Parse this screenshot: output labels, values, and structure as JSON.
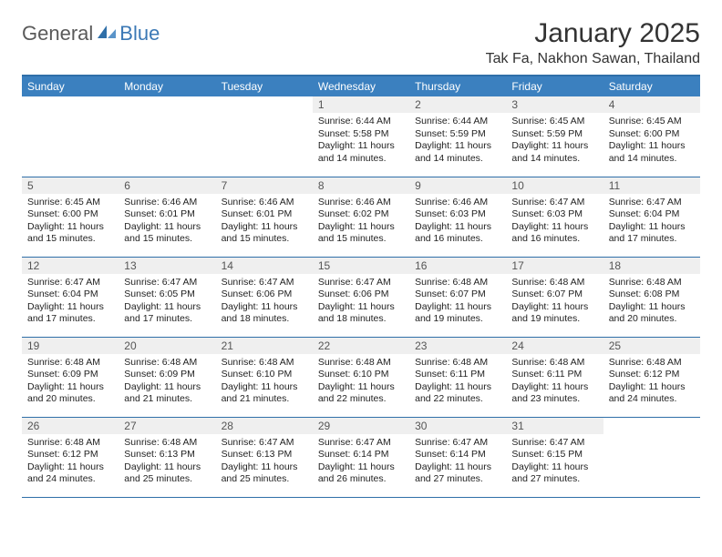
{
  "logo": {
    "text1": "General",
    "text2": "Blue"
  },
  "title": "January 2025",
  "location": "Tak Fa, Nakhon Sawan, Thailand",
  "colors": {
    "header_bg": "#3b80bf",
    "header_text": "#ffffff",
    "border": "#2f6fa8",
    "daynum_bg": "#efefef",
    "daynum_text": "#555555",
    "body_text": "#222222",
    "logo_gray": "#5a5a5a",
    "logo_blue": "#3b78b5",
    "page_bg": "#ffffff"
  },
  "typography": {
    "title_fontsize": 30,
    "location_fontsize": 16,
    "header_fontsize": 12,
    "daynum_fontsize": 12,
    "content_fontsize": 10.5
  },
  "dayHeaders": [
    "Sunday",
    "Monday",
    "Tuesday",
    "Wednesday",
    "Thursday",
    "Friday",
    "Saturday"
  ],
  "weeks": [
    [
      null,
      null,
      null,
      {
        "n": "1",
        "sunrise": "6:44 AM",
        "sunset": "5:58 PM",
        "daylight": "11 hours and 14 minutes."
      },
      {
        "n": "2",
        "sunrise": "6:44 AM",
        "sunset": "5:59 PM",
        "daylight": "11 hours and 14 minutes."
      },
      {
        "n": "3",
        "sunrise": "6:45 AM",
        "sunset": "5:59 PM",
        "daylight": "11 hours and 14 minutes."
      },
      {
        "n": "4",
        "sunrise": "6:45 AM",
        "sunset": "6:00 PM",
        "daylight": "11 hours and 14 minutes."
      }
    ],
    [
      {
        "n": "5",
        "sunrise": "6:45 AM",
        "sunset": "6:00 PM",
        "daylight": "11 hours and 15 minutes."
      },
      {
        "n": "6",
        "sunrise": "6:46 AM",
        "sunset": "6:01 PM",
        "daylight": "11 hours and 15 minutes."
      },
      {
        "n": "7",
        "sunrise": "6:46 AM",
        "sunset": "6:01 PM",
        "daylight": "11 hours and 15 minutes."
      },
      {
        "n": "8",
        "sunrise": "6:46 AM",
        "sunset": "6:02 PM",
        "daylight": "11 hours and 15 minutes."
      },
      {
        "n": "9",
        "sunrise": "6:46 AM",
        "sunset": "6:03 PM",
        "daylight": "11 hours and 16 minutes."
      },
      {
        "n": "10",
        "sunrise": "6:47 AM",
        "sunset": "6:03 PM",
        "daylight": "11 hours and 16 minutes."
      },
      {
        "n": "11",
        "sunrise": "6:47 AM",
        "sunset": "6:04 PM",
        "daylight": "11 hours and 17 minutes."
      }
    ],
    [
      {
        "n": "12",
        "sunrise": "6:47 AM",
        "sunset": "6:04 PM",
        "daylight": "11 hours and 17 minutes."
      },
      {
        "n": "13",
        "sunrise": "6:47 AM",
        "sunset": "6:05 PM",
        "daylight": "11 hours and 17 minutes."
      },
      {
        "n": "14",
        "sunrise": "6:47 AM",
        "sunset": "6:06 PM",
        "daylight": "11 hours and 18 minutes."
      },
      {
        "n": "15",
        "sunrise": "6:47 AM",
        "sunset": "6:06 PM",
        "daylight": "11 hours and 18 minutes."
      },
      {
        "n": "16",
        "sunrise": "6:48 AM",
        "sunset": "6:07 PM",
        "daylight": "11 hours and 19 minutes."
      },
      {
        "n": "17",
        "sunrise": "6:48 AM",
        "sunset": "6:07 PM",
        "daylight": "11 hours and 19 minutes."
      },
      {
        "n": "18",
        "sunrise": "6:48 AM",
        "sunset": "6:08 PM",
        "daylight": "11 hours and 20 minutes."
      }
    ],
    [
      {
        "n": "19",
        "sunrise": "6:48 AM",
        "sunset": "6:09 PM",
        "daylight": "11 hours and 20 minutes."
      },
      {
        "n": "20",
        "sunrise": "6:48 AM",
        "sunset": "6:09 PM",
        "daylight": "11 hours and 21 minutes."
      },
      {
        "n": "21",
        "sunrise": "6:48 AM",
        "sunset": "6:10 PM",
        "daylight": "11 hours and 21 minutes."
      },
      {
        "n": "22",
        "sunrise": "6:48 AM",
        "sunset": "6:10 PM",
        "daylight": "11 hours and 22 minutes."
      },
      {
        "n": "23",
        "sunrise": "6:48 AM",
        "sunset": "6:11 PM",
        "daylight": "11 hours and 22 minutes."
      },
      {
        "n": "24",
        "sunrise": "6:48 AM",
        "sunset": "6:11 PM",
        "daylight": "11 hours and 23 minutes."
      },
      {
        "n": "25",
        "sunrise": "6:48 AM",
        "sunset": "6:12 PM",
        "daylight": "11 hours and 24 minutes."
      }
    ],
    [
      {
        "n": "26",
        "sunrise": "6:48 AM",
        "sunset": "6:12 PM",
        "daylight": "11 hours and 24 minutes."
      },
      {
        "n": "27",
        "sunrise": "6:48 AM",
        "sunset": "6:13 PM",
        "daylight": "11 hours and 25 minutes."
      },
      {
        "n": "28",
        "sunrise": "6:47 AM",
        "sunset": "6:13 PM",
        "daylight": "11 hours and 25 minutes."
      },
      {
        "n": "29",
        "sunrise": "6:47 AM",
        "sunset": "6:14 PM",
        "daylight": "11 hours and 26 minutes."
      },
      {
        "n": "30",
        "sunrise": "6:47 AM",
        "sunset": "6:14 PM",
        "daylight": "11 hours and 27 minutes."
      },
      {
        "n": "31",
        "sunrise": "6:47 AM",
        "sunset": "6:15 PM",
        "daylight": "11 hours and 27 minutes."
      },
      null
    ]
  ],
  "labels": {
    "sunrise": "Sunrise:",
    "sunset": "Sunset:",
    "daylight": "Daylight:"
  }
}
